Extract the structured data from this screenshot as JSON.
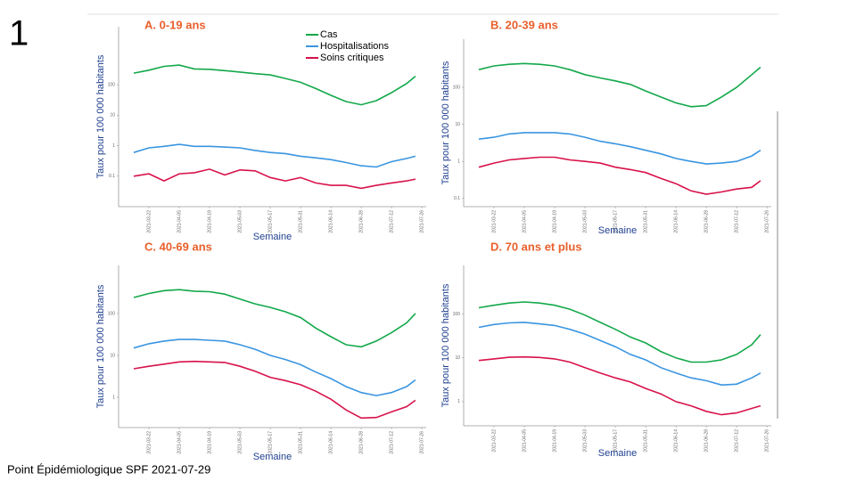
{
  "slide_number": "1",
  "footer": "Point Épidémiologique SPF 2021-07-29",
  "chart_data": [
    {
      "type": "line",
      "title": "A. 0-19 ans",
      "xlabel": "Semaine",
      "ylabel": "Taux pour 100 000 habitants",
      "log_y": true,
      "legend": "top-center",
      "x": [
        "2021-03-15",
        "2021-03-22",
        "2021-03-29",
        "2021-04-05",
        "2021-04-12",
        "2021-04-19",
        "2021-04-26",
        "2021-05-03",
        "2021-05-10",
        "2021-05-17",
        "2021-05-24",
        "2021-05-31",
        "2021-06-07",
        "2021-06-14",
        "2021-06-21",
        "2021-06-28",
        "2021-07-05",
        "2021-07-12",
        "2021-07-19",
        "2021-07-23"
      ],
      "xlim": [
        "2021-03-08",
        "2021-07-28"
      ],
      "xticks": [
        "2021-03-22",
        "2021-04-05",
        "2021-04-19",
        "2021-05-03",
        "2021-05-17",
        "2021-05-31",
        "2021-06-14",
        "2021-06-28",
        "2021-07-12",
        "2021-07-26"
      ],
      "ylim": [
        0.01,
        8000
      ],
      "yticks": [
        0.1,
        1,
        10,
        100
      ],
      "series": [
        {
          "name": "Cas",
          "color": "#12a84a",
          "values": [
            240,
            300,
            400,
            440,
            330,
            320,
            290,
            260,
            230,
            210,
            160,
            120,
            75,
            45,
            28,
            22,
            30,
            55,
            110,
            190
          ]
        },
        {
          "name": "Hospitalisations",
          "color": "#3a95e0",
          "values": [
            0.6,
            0.85,
            0.95,
            1.1,
            0.95,
            0.95,
            0.9,
            0.85,
            0.7,
            0.6,
            0.55,
            0.45,
            0.4,
            0.35,
            0.28,
            0.22,
            0.2,
            0.3,
            0.38,
            0.45
          ]
        },
        {
          "name": "Soins critiques",
          "color": "#d8124a",
          "values": [
            0.1,
            0.12,
            0.07,
            0.12,
            0.13,
            0.17,
            0.11,
            0.16,
            0.15,
            0.09,
            0.07,
            0.09,
            0.06,
            0.05,
            0.05,
            0.04,
            0.05,
            0.06,
            0.07,
            0.08
          ]
        }
      ]
    },
    {
      "type": "line",
      "title": "B. 20-39 ans",
      "xlabel": "Semaine",
      "ylabel": "Taux pour 100 000 habitants",
      "log_y": true,
      "x": [
        "2021-03-15",
        "2021-03-22",
        "2021-03-29",
        "2021-04-05",
        "2021-04-12",
        "2021-04-19",
        "2021-04-26",
        "2021-05-03",
        "2021-05-10",
        "2021-05-17",
        "2021-05-24",
        "2021-05-31",
        "2021-06-07",
        "2021-06-14",
        "2021-06-21",
        "2021-06-28",
        "2021-07-05",
        "2021-07-12",
        "2021-07-19",
        "2021-07-23"
      ],
      "xlim": [
        "2021-03-08",
        "2021-07-28"
      ],
      "xticks": [
        "2021-03-22",
        "2021-04-05",
        "2021-04-19",
        "2021-05-03",
        "2021-05-17",
        "2021-05-31",
        "2021-06-14",
        "2021-06-28",
        "2021-07-12",
        "2021-07-26"
      ],
      "ylim": [
        0.06,
        2000
      ],
      "yticks": [
        0.1,
        1,
        10,
        100
      ],
      "series": [
        {
          "color": "#12a84a",
          "values": [
            300,
            380,
            420,
            440,
            420,
            380,
            300,
            220,
            180,
            150,
            120,
            80,
            55,
            38,
            30,
            32,
            55,
            100,
            220,
            350
          ]
        },
        {
          "color": "#3a95e0",
          "values": [
            4,
            4.5,
            5.5,
            6,
            6,
            6,
            5.5,
            4.5,
            3.5,
            3,
            2.5,
            2,
            1.6,
            1.2,
            1.0,
            0.85,
            0.9,
            1.0,
            1.4,
            2.0
          ]
        },
        {
          "color": "#d8124a",
          "values": [
            0.7,
            0.9,
            1.1,
            1.2,
            1.3,
            1.3,
            1.1,
            1.0,
            0.9,
            0.7,
            0.6,
            0.5,
            0.35,
            0.25,
            0.16,
            0.13,
            0.15,
            0.18,
            0.2,
            0.3
          ]
        }
      ]
    },
    {
      "type": "line",
      "title": "C. 40-69 ans",
      "xlabel": "Semaine",
      "ylabel": "Taux pour 100 000 habitants",
      "log_y": true,
      "x": [
        "2021-03-15",
        "2021-03-22",
        "2021-03-29",
        "2021-04-05",
        "2021-04-12",
        "2021-04-19",
        "2021-04-26",
        "2021-05-03",
        "2021-05-10",
        "2021-05-17",
        "2021-05-24",
        "2021-05-31",
        "2021-06-07",
        "2021-06-14",
        "2021-06-21",
        "2021-06-28",
        "2021-07-05",
        "2021-07-12",
        "2021-07-19",
        "2021-07-23"
      ],
      "xlim": [
        "2021-03-08",
        "2021-07-28"
      ],
      "xticks": [
        "2021-03-22",
        "2021-04-05",
        "2021-04-19",
        "2021-05-03",
        "2021-05-17",
        "2021-05-31",
        "2021-06-14",
        "2021-06-28",
        "2021-07-12",
        "2021-07-26"
      ],
      "ylim": [
        0.19,
        1400
      ],
      "yticks": [
        1,
        10,
        100
      ],
      "series": [
        {
          "color": "#12a84a",
          "values": [
            240,
            300,
            350,
            370,
            340,
            330,
            290,
            220,
            170,
            140,
            110,
            80,
            45,
            28,
            18,
            16,
            22,
            35,
            60,
            100
          ]
        },
        {
          "color": "#3a95e0",
          "values": [
            15,
            19,
            22,
            24,
            24,
            23,
            22,
            18,
            14,
            10,
            8,
            6,
            4,
            2.8,
            1.8,
            1.3,
            1.1,
            1.3,
            1.8,
            2.6
          ]
        },
        {
          "color": "#d8124a",
          "values": [
            4.8,
            5.5,
            6.2,
            7,
            7.2,
            7,
            6.8,
            5.5,
            4.2,
            3,
            2.5,
            2,
            1.4,
            0.9,
            0.5,
            0.32,
            0.33,
            0.45,
            0.6,
            0.85
          ]
        }
      ]
    },
    {
      "type": "line",
      "title": "D. 70 ans et plus",
      "xlabel": "Semaine",
      "ylabel": "Taux pour 100 000 habitants",
      "log_y": true,
      "x": [
        "2021-03-15",
        "2021-03-22",
        "2021-03-29",
        "2021-04-05",
        "2021-04-12",
        "2021-04-19",
        "2021-04-26",
        "2021-05-03",
        "2021-05-10",
        "2021-05-17",
        "2021-05-24",
        "2021-05-31",
        "2021-06-07",
        "2021-06-14",
        "2021-06-21",
        "2021-06-28",
        "2021-07-05",
        "2021-07-12",
        "2021-07-19",
        "2021-07-23"
      ],
      "xlim": [
        "2021-03-08",
        "2021-07-28"
      ],
      "xticks": [
        "2021-03-22",
        "2021-04-05",
        "2021-04-19",
        "2021-05-03",
        "2021-05-17",
        "2021-05-31",
        "2021-06-14",
        "2021-06-28",
        "2021-07-12",
        "2021-07-26"
      ],
      "ylim": [
        0.28,
        1300
      ],
      "yticks": [
        1,
        10,
        100
      ],
      "series": [
        {
          "color": "#12a84a",
          "values": [
            140,
            160,
            180,
            190,
            180,
            160,
            130,
            95,
            65,
            45,
            30,
            22,
            14,
            10,
            8,
            8,
            9,
            12,
            20,
            34
          ]
        },
        {
          "color": "#3a95e0",
          "values": [
            50,
            58,
            63,
            65,
            60,
            55,
            45,
            35,
            25,
            18,
            12,
            9,
            6,
            4.5,
            3.5,
            3,
            2.4,
            2.5,
            3.5,
            4.5
          ]
        },
        {
          "color": "#d8124a",
          "values": [
            8.7,
            9.5,
            10.3,
            10.5,
            10.2,
            9.5,
            8,
            6,
            4.5,
            3.5,
            2.8,
            2,
            1.5,
            1.0,
            0.8,
            0.6,
            0.5,
            0.55,
            0.7,
            0.8
          ]
        }
      ]
    }
  ]
}
